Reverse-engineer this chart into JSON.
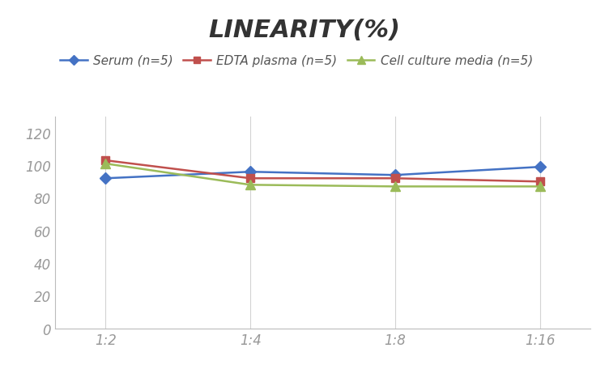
{
  "title": "LINEARITY(%)",
  "x_labels": [
    "1:2",
    "1:4",
    "1:8",
    "1:16"
  ],
  "x_positions": [
    0,
    1,
    2,
    3
  ],
  "series": [
    {
      "label": "Serum (n=5)",
      "values": [
        92,
        96,
        94,
        99
      ],
      "color": "#4472C4",
      "marker": "D",
      "markersize": 7,
      "linewidth": 1.8
    },
    {
      "label": "EDTA plasma (n=5)",
      "values": [
        103,
        92,
        92,
        90
      ],
      "color": "#C0504D",
      "marker": "s",
      "markersize": 7,
      "linewidth": 1.8
    },
    {
      "label": "Cell culture media (n=5)",
      "values": [
        101,
        88,
        87,
        87
      ],
      "color": "#9BBB59",
      "marker": "^",
      "markersize": 8,
      "linewidth": 1.8
    }
  ],
  "ylim": [
    0,
    130
  ],
  "yticks": [
    0,
    20,
    40,
    60,
    80,
    100,
    120
  ],
  "background_color": "#FFFFFF",
  "grid_color": "#D3D3D3",
  "title_fontsize": 22,
  "tick_fontsize": 12,
  "legend_fontsize": 11,
  "tick_color": "#999999"
}
